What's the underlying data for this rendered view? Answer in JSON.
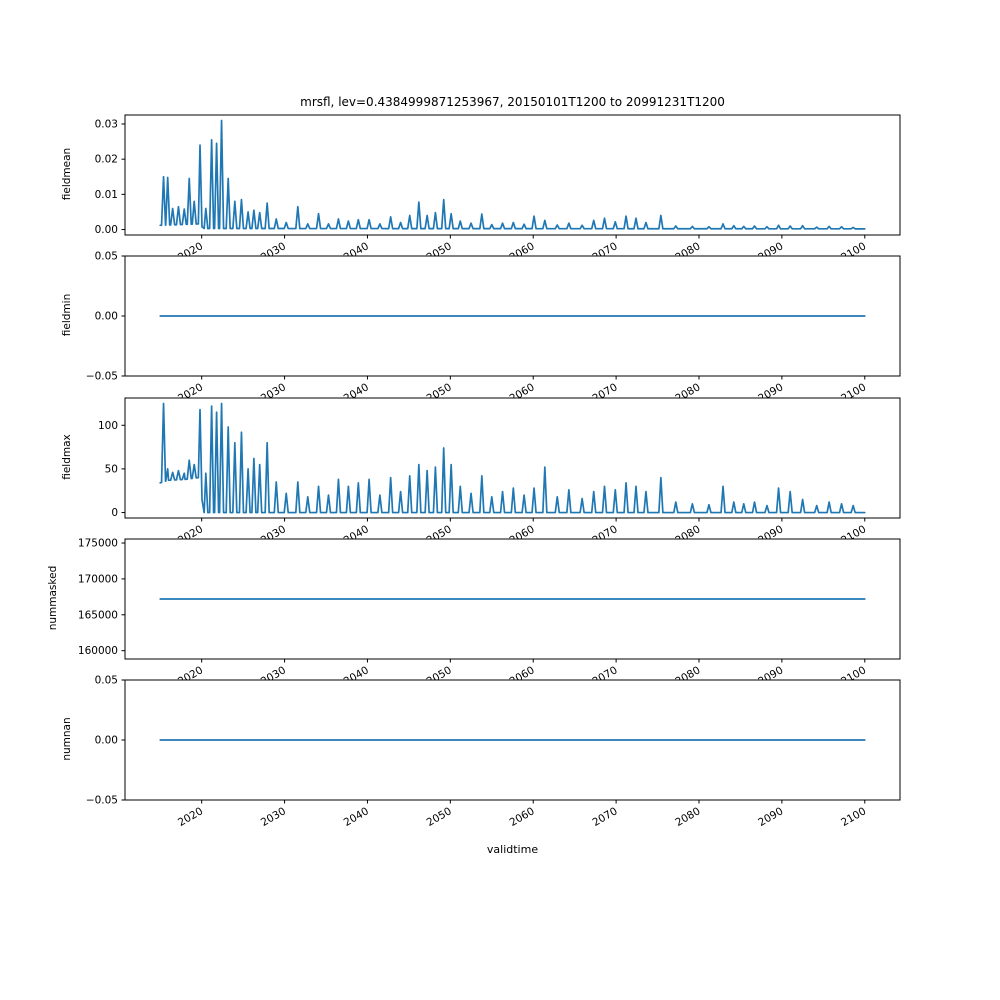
{
  "chart_data": {
    "type": "line",
    "title": "mrsfl, lev=0.4384999871253967, 20150101T1200 to 20991231T1200",
    "xlabel": "validtime",
    "line_color": "#1f77b4",
    "axis_color": "#000000",
    "grid": false,
    "legend": null,
    "x": {
      "lim": [
        2010.75,
        2104.25
      ],
      "data_range": [
        2015,
        2100
      ],
      "ticks": [
        2020,
        2030,
        2040,
        2050,
        2060,
        2070,
        2080,
        2090,
        2100
      ],
      "tick_labels": [
        "2020",
        "2030",
        "2040",
        "2050",
        "2060",
        "2070",
        "2080",
        "2090",
        "2100"
      ],
      "tick_rotation_deg": 30
    },
    "spike_halfwidth_years": 0.24,
    "spike_events_columns": [
      "year",
      "fieldmax",
      "fieldmean"
    ],
    "spike_events": [
      [
        2015.4,
        125,
        0.015
      ],
      [
        2015.9,
        50,
        0.0148
      ],
      [
        2016.5,
        46,
        0.006
      ],
      [
        2017.2,
        48,
        0.0065
      ],
      [
        2017.9,
        45,
        0.0058
      ],
      [
        2018.5,
        60,
        0.0145
      ],
      [
        2019.1,
        55,
        0.008
      ],
      [
        2019.8,
        118,
        0.024
      ],
      [
        2020.5,
        45,
        0.006
      ],
      [
        2021.2,
        122,
        0.0255
      ],
      [
        2021.8,
        115,
        0.0245
      ],
      [
        2022.4,
        125,
        0.031
      ],
      [
        2023.2,
        98,
        0.0145
      ],
      [
        2024.0,
        80,
        0.008
      ],
      [
        2024.8,
        92,
        0.0085
      ],
      [
        2025.6,
        50,
        0.005
      ],
      [
        2026.3,
        62,
        0.0055
      ],
      [
        2027.0,
        55,
        0.0048
      ],
      [
        2027.9,
        80,
        0.0075
      ],
      [
        2029.0,
        35,
        0.003
      ],
      [
        2030.2,
        22,
        0.002
      ],
      [
        2031.6,
        35,
        0.0065
      ],
      [
        2032.8,
        18,
        0.0016
      ],
      [
        2034.1,
        30,
        0.0045
      ],
      [
        2035.3,
        20,
        0.0016
      ],
      [
        2036.5,
        38,
        0.003
      ],
      [
        2037.7,
        30,
        0.0024
      ],
      [
        2038.9,
        34,
        0.0028
      ],
      [
        2040.2,
        38,
        0.0028
      ],
      [
        2041.5,
        20,
        0.0016
      ],
      [
        2042.8,
        40,
        0.0036
      ],
      [
        2044.0,
        24,
        0.002
      ],
      [
        2045.1,
        42,
        0.004
      ],
      [
        2046.2,
        55,
        0.0078
      ],
      [
        2047.2,
        48,
        0.004
      ],
      [
        2048.2,
        52,
        0.0048
      ],
      [
        2049.2,
        74,
        0.0085
      ],
      [
        2050.1,
        55,
        0.0045
      ],
      [
        2051.2,
        30,
        0.0024
      ],
      [
        2052.5,
        22,
        0.0018
      ],
      [
        2053.8,
        42,
        0.0044
      ],
      [
        2055.0,
        18,
        0.0014
      ],
      [
        2056.3,
        24,
        0.0018
      ],
      [
        2057.6,
        28,
        0.002
      ],
      [
        2058.9,
        20,
        0.0015
      ],
      [
        2060.1,
        28,
        0.0038
      ],
      [
        2061.4,
        52,
        0.0026
      ],
      [
        2062.9,
        18,
        0.0013
      ],
      [
        2064.3,
        26,
        0.0018
      ],
      [
        2065.9,
        16,
        0.0012
      ],
      [
        2067.3,
        24,
        0.0026
      ],
      [
        2068.6,
        30,
        0.0032
      ],
      [
        2069.9,
        26,
        0.0022
      ],
      [
        2071.2,
        34,
        0.0038
      ],
      [
        2072.4,
        30,
        0.0032
      ],
      [
        2073.6,
        24,
        0.002
      ],
      [
        2075.4,
        40,
        0.004
      ],
      [
        2077.2,
        12,
        0.001
      ],
      [
        2079.2,
        10,
        0.0009
      ],
      [
        2081.2,
        9,
        0.0008
      ],
      [
        2082.9,
        30,
        0.0016
      ],
      [
        2084.2,
        12,
        0.0011
      ],
      [
        2085.4,
        10,
        0.0009
      ],
      [
        2086.7,
        12,
        0.001
      ],
      [
        2088.2,
        8,
        0.0008
      ],
      [
        2089.6,
        28,
        0.0012
      ],
      [
        2091.0,
        24,
        0.001
      ],
      [
        2092.5,
        15,
        0.0011
      ],
      [
        2094.2,
        8,
        0.0007
      ],
      [
        2095.7,
        12,
        0.0009
      ],
      [
        2097.2,
        10,
        0.0008
      ],
      [
        2098.6,
        8,
        0.0006
      ]
    ],
    "subplots": [
      {
        "ylabel": "fieldmean",
        "ylim": [
          -0.00155,
          0.03255
        ],
        "yticks": [
          0.03,
          0.02,
          0.01,
          0.0
        ],
        "ytick_labels": [
          "0.03",
          "0.02",
          "0.01",
          "0.00"
        ],
        "series": {
          "kind": "spikes",
          "value_index": 2,
          "baseline": [
            [
              2015,
              0.0012
            ],
            [
              2019.6,
              0.0016
            ],
            [
              2020.3,
              0.0003
            ],
            [
              2100,
              0.0002
            ]
          ]
        }
      },
      {
        "ylabel": "fieldmin",
        "ylim": [
          -0.05,
          0.05
        ],
        "yticks": [
          0.05,
          0.0,
          -0.05
        ],
        "ytick_labels": [
          "0.05",
          "0.00",
          "−0.05"
        ],
        "series": {
          "kind": "flat",
          "value": 0.0,
          "x_range": [
            2015,
            2100
          ]
        }
      },
      {
        "ylabel": "fieldmax",
        "ylim": [
          -6.25,
          131.25
        ],
        "yticks": [
          100,
          50,
          0
        ],
        "ytick_labels": [
          "100",
          "50",
          "0"
        ],
        "series": {
          "kind": "spikes",
          "value_index": 1,
          "baseline": [
            [
              2015,
              34
            ],
            [
              2016,
              37
            ],
            [
              2018,
              38
            ],
            [
              2019.6,
              40
            ],
            [
              2020.3,
              0
            ],
            [
              2100,
              0
            ]
          ]
        }
      },
      {
        "ylabel": "nummasked",
        "ylim": [
          158840,
          175560
        ],
        "yticks": [
          175000,
          170000,
          165000,
          160000
        ],
        "ytick_labels": [
          "175000",
          "170000",
          "165000",
          "160000"
        ],
        "series": {
          "kind": "flat",
          "value": 167200,
          "x_range": [
            2015,
            2100
          ]
        }
      },
      {
        "ylabel": "numnan",
        "ylim": [
          -0.05,
          0.05
        ],
        "yticks": [
          0.05,
          0.0,
          -0.05
        ],
        "ytick_labels": [
          "0.05",
          "0.00",
          "−0.05"
        ],
        "series": {
          "kind": "flat",
          "value": 0.0,
          "x_range": [
            2015,
            2100
          ]
        }
      }
    ]
  }
}
